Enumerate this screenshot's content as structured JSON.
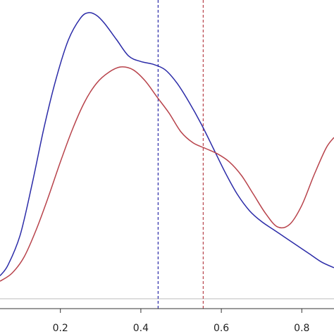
{
  "chart_data": {
    "type": "line",
    "xlim": [
      0.05,
      0.88
    ],
    "ylim": [
      0,
      1
    ],
    "x_ticks": [
      0.2,
      0.4,
      0.6,
      0.8
    ],
    "x_tick_labels": [
      "0.2",
      "0.4",
      "0.6",
      "0.8"
    ],
    "title": "",
    "xlabel": "",
    "ylabel": "",
    "grid": false,
    "legend": "none",
    "series": [
      {
        "color": "#2b2ba8",
        "x": [
          0.05,
          0.07,
          0.1,
          0.13,
          0.16,
          0.19,
          0.22,
          0.25,
          0.27,
          0.29,
          0.31,
          0.34,
          0.37,
          0.4,
          0.43,
          0.46,
          0.49,
          0.52,
          0.55,
          0.58,
          0.61,
          0.64,
          0.67,
          0.7,
          0.73,
          0.76,
          0.79,
          0.82,
          0.85,
          0.88
        ],
        "y": [
          0.03,
          0.07,
          0.18,
          0.37,
          0.58,
          0.76,
          0.9,
          0.98,
          1.0,
          0.99,
          0.96,
          0.9,
          0.84,
          0.82,
          0.81,
          0.79,
          0.74,
          0.67,
          0.59,
          0.5,
          0.41,
          0.33,
          0.27,
          0.23,
          0.2,
          0.17,
          0.14,
          0.11,
          0.08,
          0.06
        ]
      },
      {
        "color": "#b8434b",
        "x": [
          0.05,
          0.08,
          0.11,
          0.14,
          0.17,
          0.2,
          0.23,
          0.26,
          0.29,
          0.32,
          0.35,
          0.38,
          0.41,
          0.44,
          0.47,
          0.5,
          0.53,
          0.56,
          0.59,
          0.62,
          0.65,
          0.68,
          0.71,
          0.74,
          0.77,
          0.8,
          0.83,
          0.86,
          0.88
        ],
        "y": [
          0.01,
          0.04,
          0.1,
          0.2,
          0.32,
          0.45,
          0.57,
          0.67,
          0.74,
          0.78,
          0.8,
          0.79,
          0.75,
          0.69,
          0.63,
          0.56,
          0.52,
          0.5,
          0.48,
          0.45,
          0.4,
          0.33,
          0.26,
          0.21,
          0.22,
          0.29,
          0.4,
          0.5,
          0.54
        ]
      }
    ],
    "vlines": [
      {
        "x": 0.443,
        "color": "#2b2ba8",
        "style": "dashed"
      },
      {
        "x": 0.555,
        "color": "#b8434b",
        "style": "dashed"
      }
    ],
    "baseline_color": "#bbbbbb",
    "axis_color": "#333333"
  }
}
